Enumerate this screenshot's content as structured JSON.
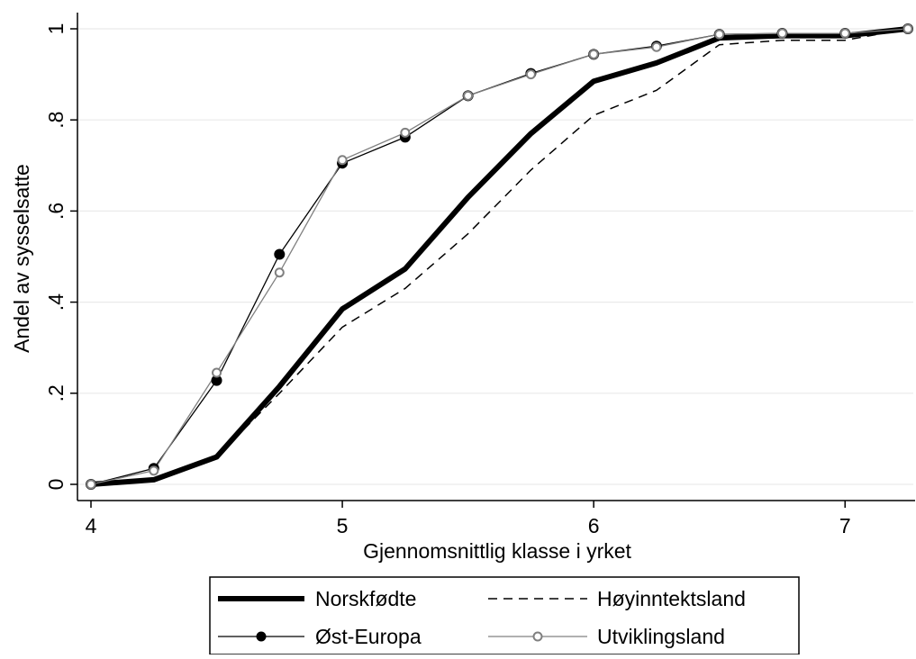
{
  "chart_data": {
    "type": "line",
    "title": "",
    "xlabel": "Gjennomsnittlig klasse i yrket",
    "ylabel": "Andel av sysselsatte",
    "xlim": [
      4,
      7.25
    ],
    "ylim": [
      0,
      1
    ],
    "xticks": [
      4,
      5,
      6,
      7
    ],
    "xtick_labels": [
      "4",
      "5",
      "6",
      "7"
    ],
    "yticks": [
      0,
      0.2,
      0.4,
      0.6,
      0.8,
      1
    ],
    "ytick_labels": [
      "0",
      ".2",
      ".4",
      ".6",
      ".8",
      "1"
    ],
    "grid": "horizontal",
    "legend_position": "bottom",
    "series": [
      {
        "name": "Norskfødte",
        "style": "thick-solid",
        "color": "#000000",
        "x": [
          4,
          4.25,
          4.5,
          4.75,
          5,
          5.25,
          5.5,
          5.75,
          6,
          6.25,
          6.5,
          6.75,
          7,
          7.25
        ],
        "y": [
          0,
          0.01,
          0.06,
          0.215,
          0.385,
          0.473,
          0.63,
          0.77,
          0.885,
          0.925,
          0.98,
          0.985,
          0.985,
          1.0
        ]
      },
      {
        "name": "Høyinntektsland",
        "style": "dashed",
        "color": "#000000",
        "x": [
          4,
          4.25,
          4.5,
          4.75,
          5,
          5.25,
          5.5,
          5.75,
          6,
          6.25,
          6.5,
          6.75,
          7,
          7.25
        ],
        "y": [
          0,
          0.01,
          0.06,
          0.2,
          0.345,
          0.43,
          0.55,
          0.69,
          0.81,
          0.865,
          0.965,
          0.975,
          0.975,
          1.0
        ]
      },
      {
        "name": "Øst-Europa",
        "style": "solid-filled-marker",
        "color": "#000000",
        "x": [
          4,
          4.25,
          4.5,
          4.75,
          5,
          5.25,
          5.5,
          5.75,
          6,
          6.25,
          6.5,
          6.75,
          7,
          7.25
        ],
        "y": [
          0,
          0.035,
          0.228,
          0.505,
          0.705,
          0.762,
          0.853,
          0.902,
          0.944,
          0.962,
          0.988,
          0.99,
          0.99,
          1.0
        ]
      },
      {
        "name": "Utviklingsland",
        "style": "solid-hollow-marker",
        "color": "#808080",
        "x": [
          4,
          4.25,
          4.5,
          4.75,
          5,
          5.25,
          5.5,
          5.75,
          6,
          6.25,
          6.5,
          6.75,
          7,
          7.25
        ],
        "y": [
          0,
          0.03,
          0.245,
          0.465,
          0.712,
          0.772,
          0.853,
          0.9,
          0.944,
          0.96,
          0.988,
          0.99,
          0.99,
          1.0
        ]
      }
    ]
  }
}
